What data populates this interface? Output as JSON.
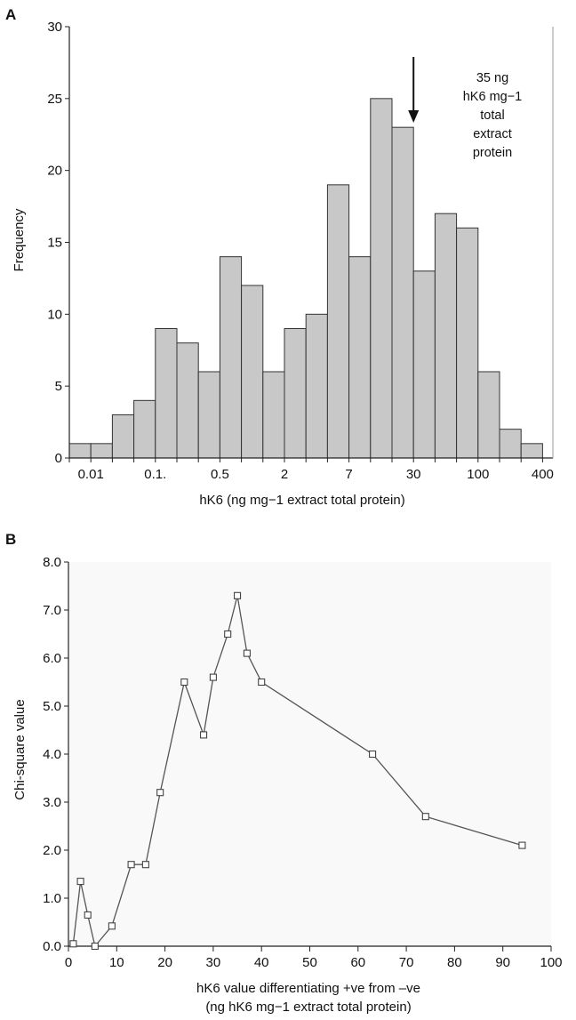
{
  "chart_data": [
    {
      "panel": "A",
      "type": "bar",
      "title": "",
      "xlabel": "hK6 (ng mg−1 extract total protein)",
      "ylabel": "Frequency",
      "ylim": [
        0,
        30
      ],
      "yticks": [
        "0",
        "5",
        "10",
        "15",
        "20",
        "25",
        "30"
      ],
      "xtick_labels": [
        "0.01",
        "0.1.",
        "0.5",
        "2",
        "7",
        "30",
        "100",
        "400"
      ],
      "values": [
        1,
        1,
        3,
        4,
        9,
        8,
        6,
        14,
        12,
        6,
        9,
        10,
        19,
        14,
        25,
        23,
        13,
        17,
        16,
        6,
        2,
        1
      ],
      "bar_color": "#c8c8c8",
      "grid": false,
      "annotation": {
        "lines": [
          "35 ng",
          "hK6 mg−1",
          "total",
          "extract",
          "protein"
        ],
        "arrow_direction": "down",
        "arrow_x_between": [
          15,
          16
        ]
      }
    },
    {
      "panel": "B",
      "type": "line",
      "title": "",
      "xlabel": "hK6 value differentiating +ve from –ve",
      "xlabel_line2": "(ng hK6 mg−1 extract total protein)",
      "ylabel": "Chi-square value",
      "xlim": [
        0,
        100
      ],
      "ylim": [
        0,
        8
      ],
      "xticks": [
        "0",
        "10",
        "20",
        "30",
        "40",
        "50",
        "60",
        "70",
        "80",
        "90",
        "100"
      ],
      "yticks": [
        "0.0",
        "1.0",
        "2.0",
        "3.0",
        "4.0",
        "5.0",
        "6.0",
        "7.0",
        "8.0"
      ],
      "x": [
        1,
        2.5,
        4,
        5.5,
        9,
        13,
        16,
        19,
        24,
        28,
        30,
        33,
        35,
        37,
        40,
        63,
        74,
        94
      ],
      "y": [
        0.05,
        1.35,
        0.65,
        0.0,
        0.42,
        1.7,
        1.7,
        3.2,
        5.5,
        4.4,
        5.6,
        6.5,
        7.3,
        6.1,
        5.5,
        4.0,
        2.7,
        2.1
      ],
      "marker": "square",
      "line_color": "#555555",
      "background": "#f9f9f9",
      "grid": false
    }
  ]
}
